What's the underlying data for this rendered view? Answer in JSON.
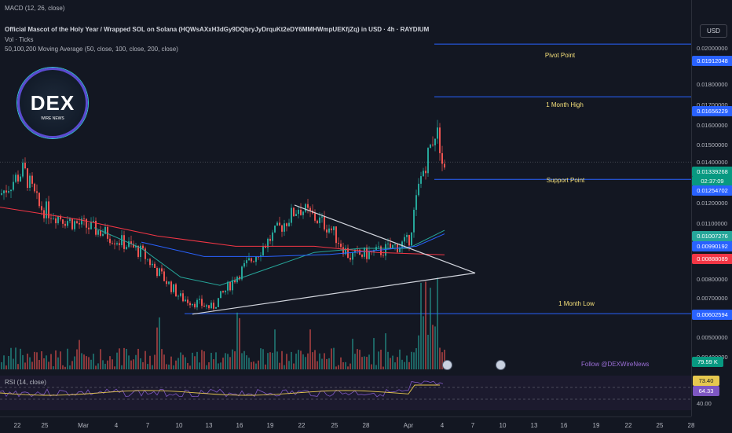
{
  "header": {
    "macd_label": "MACD (12, 26, close)",
    "title": "Official Mascot of the Holy Year / Wrapped SOL on Solana (HQWsAXxH3dGy9DQbryJyDrquKt2eDY6MMHWmpUEKfjZq) in USD · 4h · RAYDIUM",
    "vol_label": "Vol · Ticks",
    "ma_label": "50,100,200 Moving Average (50, close, 100, close, 200, close)"
  },
  "logo": {
    "name": "DEX",
    "sub": "WIRE NEWS"
  },
  "currency_button": "USD",
  "levels": [
    {
      "label": "Pivot Point",
      "price": 0.01912048
    },
    {
      "label": "1 Month High",
      "price": 0.01656229
    },
    {
      "label": "Support Point",
      "price": 0.01254702
    },
    {
      "label": "1 Month Low",
      "price": 0.00602594
    }
  ],
  "price_axis": {
    "ticks": [
      "0.02000000",
      "0.01800000",
      "0.01700000",
      "0.01600000",
      "0.01500000",
      "0.01400000",
      "0.01200000",
      "0.01100000",
      "0.00800000",
      "0.00700000",
      "0.00500000",
      "0.00400000"
    ],
    "labels": {
      "pivot": "0.01912048",
      "month_high": "0.01656229",
      "last": "0.01339268",
      "countdown": "02:37:09",
      "support": "0.01254702",
      "ma_green": "0.01007276",
      "ma_blue": "0.00990192",
      "ma_red": "0.00888089",
      "month_low": "0.00602594",
      "volume": "79.59 K"
    },
    "colors": {
      "green": "#26a69a",
      "blue": "#2962ff",
      "red": "#f23645",
      "level": "#2962ff",
      "last": "#089981"
    }
  },
  "rsi": {
    "label": "RSI (14, close)",
    "value": "73.40",
    "ma_value": "64.33",
    "level": "40.00"
  },
  "watermark": "Follow @DEXWireNews",
  "time_axis": [
    "22",
    "25",
    "Mar",
    "4",
    "7",
    "10",
    "13",
    "16",
    "19",
    "22",
    "25",
    "28",
    "Apr",
    "4",
    "7",
    "10",
    "13",
    "16",
    "19",
    "22",
    "25",
    "28"
  ],
  "chart_data": {
    "type": "candlestick",
    "symbol": "Official Mascot of the Holy Year / Wrapped SOL on Solana",
    "exchange": "RAYDIUM",
    "timeframe": "4h",
    "currency": "USD",
    "ylim": [
      0.0037,
      0.0205
    ],
    "last_price": 0.01339268,
    "moving_averages": [
      {
        "name": "MA 50",
        "color": "#26a69a",
        "last": 0.01007276
      },
      {
        "name": "MA 100",
        "color": "#2962ff",
        "last": 0.00990192
      },
      {
        "name": "MA 200",
        "color": "#f23645",
        "last": 0.00888089
      }
    ],
    "volume_last": "79.59 K",
    "rsi_last": 73.4,
    "rsi_ma_last": 64.33
  }
}
